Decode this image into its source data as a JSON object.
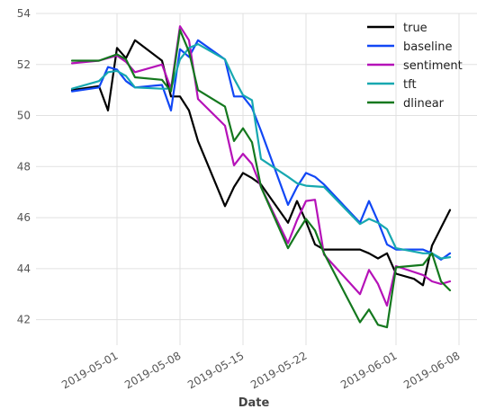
{
  "chart_data": {
    "type": "line",
    "title": "",
    "xlabel": "Date",
    "ylabel": "",
    "x_type": "date",
    "xlim": [
      "2019-04-22",
      "2019-06-10"
    ],
    "ylim": [
      41,
      54
    ],
    "yticks": [
      42,
      44,
      46,
      48,
      50,
      52,
      54
    ],
    "xticks": [
      {
        "date": "2019-05-01",
        "label": "2019-05-01"
      },
      {
        "date": "2019-05-08",
        "label": "2019-05-08"
      },
      {
        "date": "2019-05-15",
        "label": "2019-05-15"
      },
      {
        "date": "2019-05-22",
        "label": "2019-05-22"
      },
      {
        "date": "2019-06-01",
        "label": "2019-06-01"
      },
      {
        "date": "2019-06-08",
        "label": "2019-06-08"
      }
    ],
    "grid": true,
    "legend_position": "top-right",
    "series": [
      {
        "name": "true",
        "color": "#000000",
        "points": [
          [
            "2019-04-26",
            51.0
          ],
          [
            "2019-04-29",
            51.15
          ],
          [
            "2019-04-30",
            50.2
          ],
          [
            "2019-05-01",
            52.65
          ],
          [
            "2019-05-02",
            52.25
          ],
          [
            "2019-05-03",
            52.95
          ],
          [
            "2019-05-06",
            52.15
          ],
          [
            "2019-05-07",
            50.75
          ],
          [
            "2019-05-08",
            50.75
          ],
          [
            "2019-05-09",
            50.2
          ],
          [
            "2019-05-10",
            49.0
          ],
          [
            "2019-05-13",
            46.45
          ],
          [
            "2019-05-14",
            47.2
          ],
          [
            "2019-05-15",
            47.75
          ],
          [
            "2019-05-16",
            47.55
          ],
          [
            "2019-05-17",
            47.3
          ],
          [
            "2019-05-20",
            45.8
          ],
          [
            "2019-05-21",
            46.65
          ],
          [
            "2019-05-22",
            45.85
          ],
          [
            "2019-05-23",
            44.95
          ],
          [
            "2019-05-24",
            44.75
          ],
          [
            "2019-05-28",
            44.75
          ],
          [
            "2019-05-29",
            44.6
          ],
          [
            "2019-05-30",
            44.4
          ],
          [
            "2019-05-31",
            44.6
          ],
          [
            "2019-06-01",
            43.8
          ],
          [
            "2019-06-03",
            43.6
          ],
          [
            "2019-06-04",
            43.35
          ],
          [
            "2019-06-05",
            44.9
          ],
          [
            "2019-06-06",
            45.6
          ],
          [
            "2019-06-07",
            46.3
          ]
        ]
      },
      {
        "name": "baseline",
        "color": "#1147f5",
        "points": [
          [
            "2019-04-26",
            50.95
          ],
          [
            "2019-04-29",
            51.1
          ],
          [
            "2019-04-30",
            51.9
          ],
          [
            "2019-05-01",
            51.8
          ],
          [
            "2019-05-02",
            51.35
          ],
          [
            "2019-05-03",
            51.1
          ],
          [
            "2019-05-06",
            51.2
          ],
          [
            "2019-05-07",
            50.2
          ],
          [
            "2019-05-08",
            52.6
          ],
          [
            "2019-05-09",
            52.3
          ],
          [
            "2019-05-10",
            52.95
          ],
          [
            "2019-05-13",
            52.2
          ],
          [
            "2019-05-14",
            50.75
          ],
          [
            "2019-05-15",
            50.75
          ],
          [
            "2019-05-16",
            50.3
          ],
          [
            "2019-05-17",
            49.4
          ],
          [
            "2019-05-20",
            46.5
          ],
          [
            "2019-05-21",
            47.2
          ],
          [
            "2019-05-22",
            47.75
          ],
          [
            "2019-05-23",
            47.6
          ],
          [
            "2019-05-24",
            47.3
          ],
          [
            "2019-05-28",
            45.8
          ],
          [
            "2019-05-29",
            46.65
          ],
          [
            "2019-05-30",
            45.85
          ],
          [
            "2019-05-31",
            44.95
          ],
          [
            "2019-06-01",
            44.75
          ],
          [
            "2019-06-04",
            44.75
          ],
          [
            "2019-06-05",
            44.6
          ],
          [
            "2019-06-06",
            44.35
          ],
          [
            "2019-06-07",
            44.6
          ]
        ]
      },
      {
        "name": "sentiment",
        "color": "#b512b8",
        "points": [
          [
            "2019-04-26",
            52.05
          ],
          [
            "2019-04-29",
            52.15
          ],
          [
            "2019-05-01",
            52.35
          ],
          [
            "2019-05-02",
            52.1
          ],
          [
            "2019-05-03",
            51.7
          ],
          [
            "2019-05-06",
            52.0
          ],
          [
            "2019-05-07",
            51.05
          ],
          [
            "2019-05-08",
            53.5
          ],
          [
            "2019-05-09",
            52.95
          ],
          [
            "2019-05-10",
            50.65
          ],
          [
            "2019-05-13",
            49.6
          ],
          [
            "2019-05-14",
            48.05
          ],
          [
            "2019-05-15",
            48.5
          ],
          [
            "2019-05-16",
            48.1
          ],
          [
            "2019-05-17",
            47.2
          ],
          [
            "2019-05-20",
            45.0
          ],
          [
            "2019-05-21",
            45.9
          ],
          [
            "2019-05-22",
            46.65
          ],
          [
            "2019-05-23",
            46.7
          ],
          [
            "2019-05-24",
            44.55
          ],
          [
            "2019-05-28",
            43.0
          ],
          [
            "2019-05-29",
            43.95
          ],
          [
            "2019-05-30",
            43.4
          ],
          [
            "2019-05-31",
            42.55
          ],
          [
            "2019-06-01",
            44.1
          ],
          [
            "2019-06-04",
            43.75
          ],
          [
            "2019-06-05",
            43.5
          ],
          [
            "2019-06-06",
            43.4
          ],
          [
            "2019-06-07",
            43.5
          ]
        ]
      },
      {
        "name": "tft",
        "color": "#17a8b0",
        "points": [
          [
            "2019-04-26",
            51.05
          ],
          [
            "2019-04-29",
            51.35
          ],
          [
            "2019-04-30",
            51.7
          ],
          [
            "2019-05-01",
            51.75
          ],
          [
            "2019-05-02",
            51.55
          ],
          [
            "2019-05-03",
            51.1
          ],
          [
            "2019-05-06",
            51.05
          ],
          [
            "2019-05-07",
            51.05
          ],
          [
            "2019-05-08",
            52.2
          ],
          [
            "2019-05-09",
            52.65
          ],
          [
            "2019-05-10",
            52.8
          ],
          [
            "2019-05-13",
            52.2
          ],
          [
            "2019-05-14",
            51.45
          ],
          [
            "2019-05-15",
            50.8
          ],
          [
            "2019-05-16",
            50.6
          ],
          [
            "2019-05-17",
            48.3
          ],
          [
            "2019-05-20",
            47.6
          ],
          [
            "2019-05-21",
            47.35
          ],
          [
            "2019-05-22",
            47.25
          ],
          [
            "2019-05-24",
            47.2
          ],
          [
            "2019-05-28",
            45.75
          ],
          [
            "2019-05-29",
            45.95
          ],
          [
            "2019-05-30",
            45.8
          ],
          [
            "2019-05-31",
            45.55
          ],
          [
            "2019-06-01",
            44.8
          ],
          [
            "2019-06-04",
            44.6
          ],
          [
            "2019-06-05",
            44.6
          ],
          [
            "2019-06-06",
            44.4
          ],
          [
            "2019-06-07",
            44.45
          ]
        ]
      },
      {
        "name": "dlinear",
        "color": "#14781e",
        "points": [
          [
            "2019-04-26",
            52.15
          ],
          [
            "2019-04-29",
            52.15
          ],
          [
            "2019-05-01",
            52.4
          ],
          [
            "2019-05-02",
            52.2
          ],
          [
            "2019-05-03",
            51.5
          ],
          [
            "2019-05-06",
            51.4
          ],
          [
            "2019-05-07",
            50.95
          ],
          [
            "2019-05-08",
            53.35
          ],
          [
            "2019-05-09",
            52.5
          ],
          [
            "2019-05-10",
            51.0
          ],
          [
            "2019-05-13",
            50.35
          ],
          [
            "2019-05-14",
            49.0
          ],
          [
            "2019-05-15",
            49.5
          ],
          [
            "2019-05-16",
            48.95
          ],
          [
            "2019-05-17",
            47.2
          ],
          [
            "2019-05-20",
            44.8
          ],
          [
            "2019-05-21",
            45.4
          ],
          [
            "2019-05-22",
            45.95
          ],
          [
            "2019-05-23",
            45.5
          ],
          [
            "2019-05-24",
            44.6
          ],
          [
            "2019-05-28",
            41.9
          ],
          [
            "2019-05-29",
            42.4
          ],
          [
            "2019-05-30",
            41.8
          ],
          [
            "2019-05-31",
            41.7
          ],
          [
            "2019-06-01",
            44.05
          ],
          [
            "2019-06-04",
            44.15
          ],
          [
            "2019-06-05",
            44.6
          ],
          [
            "2019-06-06",
            43.5
          ],
          [
            "2019-06-07",
            43.15
          ]
        ]
      }
    ]
  }
}
